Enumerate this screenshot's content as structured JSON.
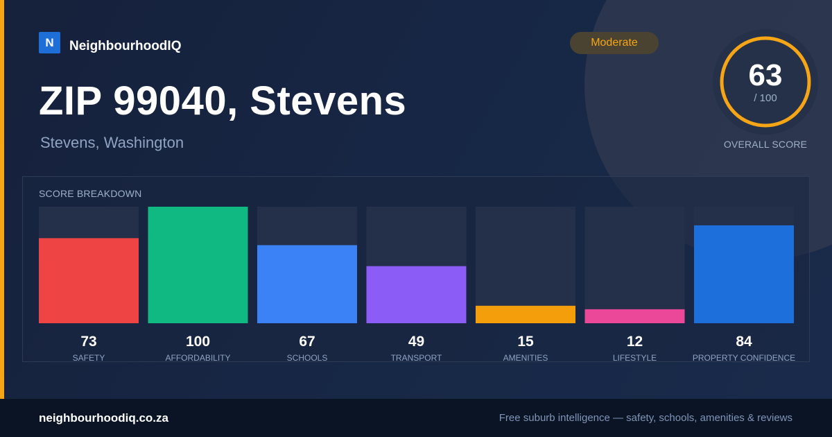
{
  "brand": {
    "logo_letter": "N",
    "name": "NeighbourhoodIQ",
    "accent": "#f5a516",
    "logo_color": "#1e6ed8"
  },
  "header": {
    "title": "ZIP 99040, Stevens",
    "subtitle": "Stevens, Washington",
    "badge": "Moderate"
  },
  "overall": {
    "score": "63",
    "max": "/ 100",
    "label": "OVERALL SCORE",
    "value": 63,
    "ring_color": "#f5a516"
  },
  "breakdown": {
    "title": "SCORE BREAKDOWN"
  },
  "chart_data": {
    "type": "bar",
    "categories": [
      "SAFETY",
      "AFFORDABILITY",
      "SCHOOLS",
      "TRANSPORT",
      "AMENITIES",
      "LIFESTYLE",
      "PROPERTY CONFIDENCE"
    ],
    "values": [
      73,
      100,
      67,
      49,
      15,
      12,
      84
    ],
    "colors": [
      "#ef4444",
      "#10b981",
      "#3b82f6",
      "#8b5cf6",
      "#f59e0b",
      "#ec4899",
      "#1d6fdc"
    ],
    "ylim": [
      0,
      100
    ],
    "title": "SCORE BREAKDOWN",
    "xlabel": "",
    "ylabel": "",
    "grid": false
  },
  "footer": {
    "site": "neighbourhoodiq.co.za",
    "tagline": "Free suburb intelligence — safety, schools, amenities & reviews"
  }
}
